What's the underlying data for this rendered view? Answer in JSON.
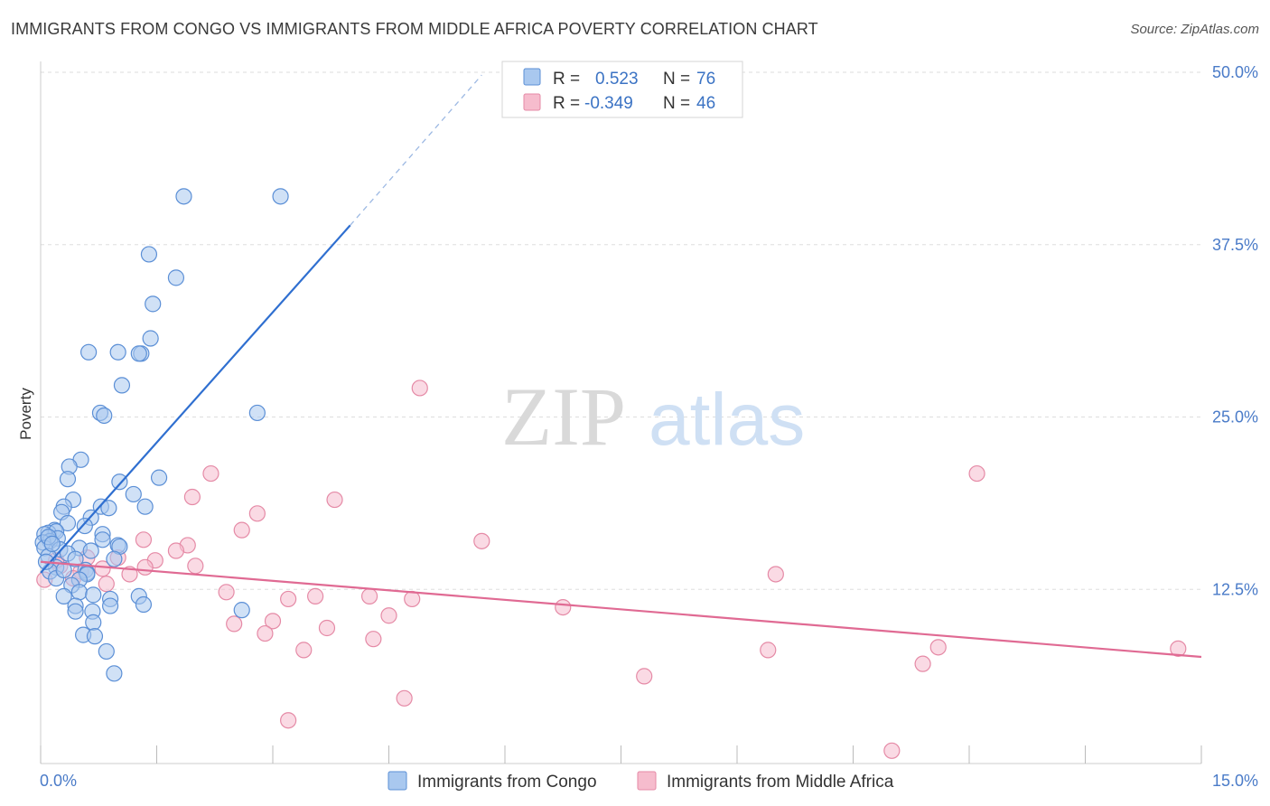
{
  "title": "IMMIGRANTS FROM CONGO VS IMMIGRANTS FROM MIDDLE AFRICA POVERTY CORRELATION CHART",
  "source": "Source: ZipAtlas.com",
  "watermark": {
    "zip": "ZIP",
    "atlas": "atlas"
  },
  "colors": {
    "blue_fill": "#a9c8ef",
    "blue_stroke": "#5b8fd6",
    "blue_line": "#2f6fd0",
    "pink_fill": "#f6bccd",
    "pink_stroke": "#e58aa6",
    "pink_line": "#e06a93",
    "tick_text": "#4a7bc8",
    "grid": "#dddddd"
  },
  "legend": {
    "rows": [
      {
        "r_label": "R =",
        "r_value": "0.523",
        "n_label": "N =",
        "n_value": "76"
      },
      {
        "r_label": "R =",
        "r_value": "-0.349",
        "n_label": "N =",
        "n_value": "46"
      }
    ]
  },
  "chart_data": {
    "type": "scatter",
    "ylabel": "Poverty",
    "xlabel": "",
    "xlim": [
      0,
      15
    ],
    "ylim": [
      0,
      50
    ],
    "x_tick_labels": [
      "0.0%",
      "15.0%"
    ],
    "y_ticks": [
      12.5,
      25.0,
      37.5,
      50.0
    ],
    "y_tick_labels": [
      "12.5%",
      "25.0%",
      "37.5%",
      "50.0%"
    ],
    "grid": true,
    "legend_position": "top-center",
    "series": [
      {
        "name": "Immigrants from Congo",
        "trend": {
          "x0": 0.0,
          "y0": 13.7,
          "x1": 4.0,
          "y1": 38.9,
          "dashed_to_x": 5.7,
          "dashed_to_y": 49.8
        },
        "points": [
          [
            1.85,
            41.0
          ],
          [
            3.1,
            41.0
          ],
          [
            1.4,
            36.8
          ],
          [
            1.75,
            35.1
          ],
          [
            1.45,
            33.2
          ],
          [
            1.42,
            30.7
          ],
          [
            0.62,
            29.7
          ],
          [
            1.0,
            29.7
          ],
          [
            1.3,
            29.6
          ],
          [
            1.27,
            29.6
          ],
          [
            1.05,
            27.3
          ],
          [
            0.77,
            25.3
          ],
          [
            0.82,
            25.1
          ],
          [
            2.8,
            25.3
          ],
          [
            0.52,
            21.9
          ],
          [
            0.37,
            21.4
          ],
          [
            0.35,
            20.5
          ],
          [
            1.02,
            20.3
          ],
          [
            1.53,
            20.6
          ],
          [
            1.2,
            19.4
          ],
          [
            0.42,
            19.0
          ],
          [
            0.3,
            18.5
          ],
          [
            0.78,
            18.5
          ],
          [
            0.88,
            18.4
          ],
          [
            1.35,
            18.5
          ],
          [
            0.27,
            18.1
          ],
          [
            0.65,
            17.7
          ],
          [
            0.35,
            17.3
          ],
          [
            0.57,
            17.1
          ],
          [
            0.18,
            16.8
          ],
          [
            0.1,
            16.6
          ],
          [
            0.2,
            16.7
          ],
          [
            0.05,
            16.5
          ],
          [
            0.8,
            16.5
          ],
          [
            0.22,
            16.2
          ],
          [
            0.12,
            16.0
          ],
          [
            0.03,
            15.9
          ],
          [
            0.8,
            16.1
          ],
          [
            0.05,
            15.5
          ],
          [
            0.5,
            15.5
          ],
          [
            0.25,
            15.4
          ],
          [
            0.35,
            15.1
          ],
          [
            1.0,
            15.7
          ],
          [
            1.02,
            15.6
          ],
          [
            0.1,
            14.9
          ],
          [
            0.45,
            14.7
          ],
          [
            0.95,
            14.7
          ],
          [
            0.2,
            14.1
          ],
          [
            0.12,
            13.8
          ],
          [
            0.58,
            13.9
          ],
          [
            0.6,
            13.7
          ],
          [
            0.6,
            13.6
          ],
          [
            0.2,
            13.3
          ],
          [
            0.5,
            13.2
          ],
          [
            0.4,
            12.8
          ],
          [
            0.5,
            12.3
          ],
          [
            0.3,
            12.0
          ],
          [
            0.68,
            12.1
          ],
          [
            1.27,
            12.0
          ],
          [
            0.9,
            11.8
          ],
          [
            1.33,
            11.4
          ],
          [
            0.45,
            11.3
          ],
          [
            0.45,
            10.9
          ],
          [
            0.67,
            10.9
          ],
          [
            0.9,
            11.3
          ],
          [
            2.6,
            11.0
          ],
          [
            0.68,
            10.1
          ],
          [
            0.55,
            9.2
          ],
          [
            0.7,
            9.1
          ],
          [
            0.85,
            8.0
          ],
          [
            0.95,
            6.4
          ],
          [
            0.1,
            16.3
          ],
          [
            0.15,
            15.8
          ],
          [
            0.07,
            14.5
          ],
          [
            0.3,
            13.9
          ],
          [
            0.65,
            15.3
          ]
        ]
      },
      {
        "name": "Immigrants from Middle Africa",
        "trend": {
          "x0": 0.0,
          "y0": 14.5,
          "x1": 15.0,
          "y1": 7.6
        },
        "points": [
          [
            4.9,
            27.1
          ],
          [
            12.1,
            20.9
          ],
          [
            2.2,
            20.9
          ],
          [
            1.96,
            19.2
          ],
          [
            3.8,
            19.0
          ],
          [
            2.8,
            18.0
          ],
          [
            2.6,
            16.8
          ],
          [
            1.33,
            16.1
          ],
          [
            5.7,
            16.0
          ],
          [
            1.9,
            15.7
          ],
          [
            1.75,
            15.3
          ],
          [
            0.6,
            14.8
          ],
          [
            1.0,
            14.8
          ],
          [
            1.48,
            14.6
          ],
          [
            1.35,
            14.1
          ],
          [
            2.0,
            14.2
          ],
          [
            0.25,
            14.2
          ],
          [
            0.8,
            14.0
          ],
          [
            0.52,
            13.8
          ],
          [
            1.15,
            13.6
          ],
          [
            9.5,
            13.6
          ],
          [
            0.42,
            13.3
          ],
          [
            0.05,
            13.2
          ],
          [
            0.85,
            12.9
          ],
          [
            2.4,
            12.3
          ],
          [
            3.2,
            11.8
          ],
          [
            3.55,
            12.0
          ],
          [
            4.25,
            12.0
          ],
          [
            4.8,
            11.8
          ],
          [
            6.75,
            11.2
          ],
          [
            4.5,
            10.6
          ],
          [
            3.0,
            10.2
          ],
          [
            2.5,
            10.0
          ],
          [
            3.7,
            9.7
          ],
          [
            2.9,
            9.3
          ],
          [
            4.3,
            8.9
          ],
          [
            3.4,
            8.1
          ],
          [
            9.4,
            8.1
          ],
          [
            11.6,
            8.3
          ],
          [
            14.7,
            8.2
          ],
          [
            11.4,
            7.1
          ],
          [
            7.8,
            6.2
          ],
          [
            4.7,
            4.6
          ],
          [
            3.2,
            3.0
          ],
          [
            11.0,
            0.8
          ],
          [
            0.2,
            14.6
          ]
        ]
      }
    ]
  }
}
